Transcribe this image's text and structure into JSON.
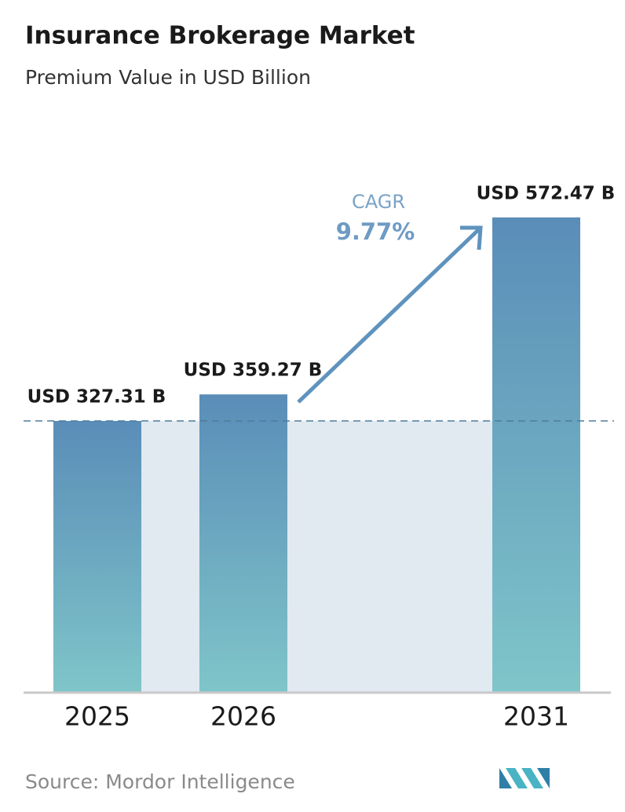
{
  "chart_data": {
    "type": "bar",
    "title": "Insurance Brokerage Market",
    "subtitle": "Premium Value in USD Billion",
    "categories": [
      "2025",
      "2026",
      "2031"
    ],
    "values": [
      327.31,
      359.27,
      572.47
    ],
    "value_labels": [
      "USD 327.31 B",
      "USD 359.27 B",
      "USD 572.47 B"
    ],
    "annotation": {
      "label": "CAGR",
      "value": "9.77%"
    },
    "source": "Source: Mordor Intelligence"
  }
}
